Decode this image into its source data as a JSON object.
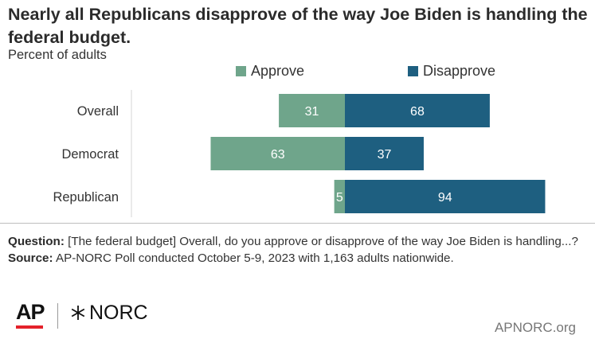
{
  "title": "Nearly all Republicans disapprove of the way Joe Biden is handling the federal budget.",
  "subtitle": "Percent of adults",
  "colors": {
    "approve": "#6fa58b",
    "disapprove": "#1e5f80",
    "text": "#333333",
    "axis": "#d6d6d6"
  },
  "chart_data": {
    "type": "bar",
    "orientation": "horizontal-diverging",
    "categories": [
      "Overall",
      "Democrat",
      "Republican"
    ],
    "series": [
      {
        "name": "Approve",
        "values": [
          31,
          63,
          5
        ]
      },
      {
        "name": "Disapprove",
        "values": [
          68,
          37,
          94
        ]
      }
    ],
    "legend": "top",
    "grid": false,
    "xlim": [
      -63,
      94
    ]
  },
  "notes": {
    "question_label": "Question:",
    "question_text": "[The federal budget] Overall, do you approve or disapprove of the way Joe Biden is handling...?",
    "source_label": "Source:",
    "source_text": "AP-NORC Poll conducted October 5-9, 2023 with 1,163 adults nationwide."
  },
  "branding": {
    "ap": "AP",
    "norc": "NORC",
    "site": "APNORC.org"
  }
}
